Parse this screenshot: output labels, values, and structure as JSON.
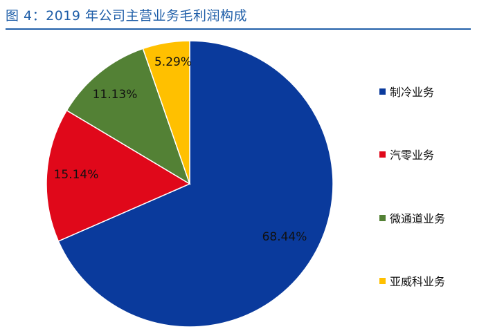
{
  "title": "图 4：2019 年公司主营业务毛利润构成",
  "chart_data": {
    "type": "pie",
    "title": "图 4：2019 年公司主营业务毛利润构成",
    "unit": "%",
    "slices": [
      {
        "name": "制冷业务",
        "value": 68.44,
        "label": "68.44%",
        "color": "#0a3a9c"
      },
      {
        "name": "汽零业务",
        "value": 15.14,
        "label": "15.14%",
        "color": "#e0081a"
      },
      {
        "name": "微通道业务",
        "value": 11.13,
        "label": "11.13%",
        "color": "#538135"
      },
      {
        "name": "亚威科业务",
        "value": 5.29,
        "label": "5.29%",
        "color": "#ffc000"
      }
    ],
    "legend_position": "right"
  }
}
